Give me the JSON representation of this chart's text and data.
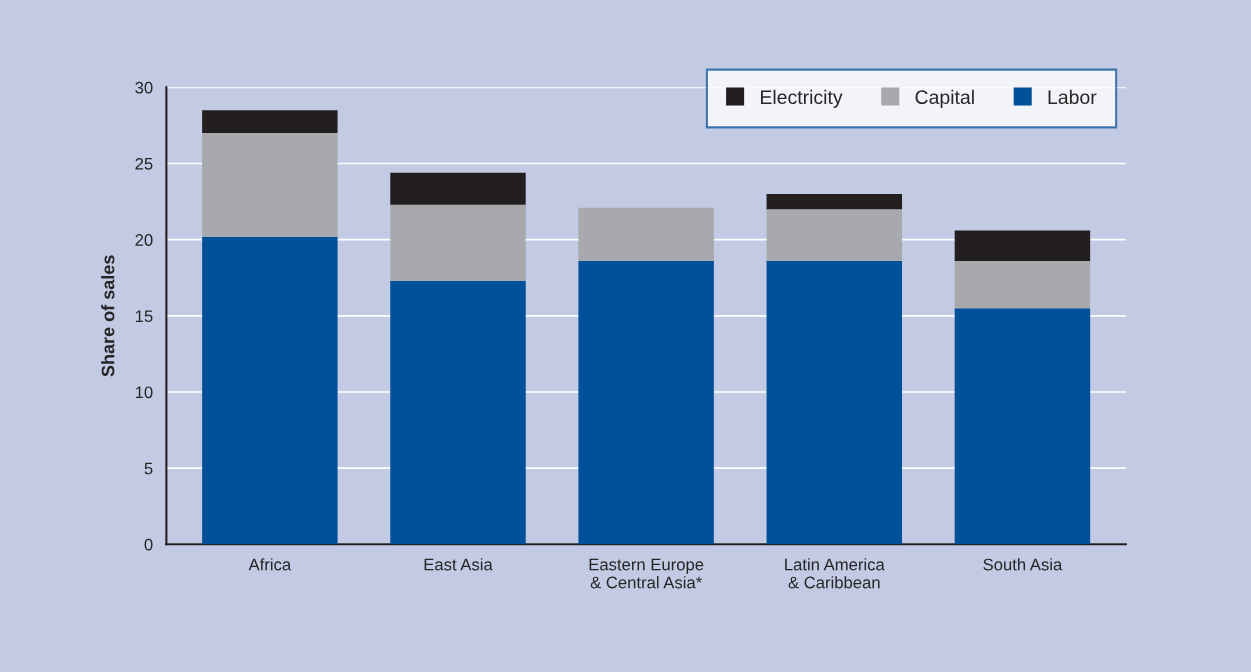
{
  "chart_data": {
    "type": "bar",
    "stacked": true,
    "ylabel": "Share of sales",
    "categories": [
      "Africa",
      "East Asia",
      "Eastern Europe\n& Central Asia*",
      "Latin America\n& Caribbean",
      "South Asia"
    ],
    "series": [
      {
        "name": "Labor",
        "color": "#00509a",
        "values": [
          20.2,
          17.3,
          18.6,
          18.6,
          15.5
        ]
      },
      {
        "name": "Capital",
        "color": "#a7a9ac",
        "values": [
          6.8,
          5.0,
          3.5,
          3.4,
          3.1
        ]
      },
      {
        "name": "Electricity",
        "color": "#231f20",
        "values": [
          1.5,
          2.1,
          null,
          1.0,
          2.0
        ]
      }
    ],
    "ylim": [
      0,
      30
    ],
    "yticks": [
      0,
      5,
      10,
      15,
      20,
      25,
      30
    ],
    "grid": "y",
    "legend": "top right"
  }
}
